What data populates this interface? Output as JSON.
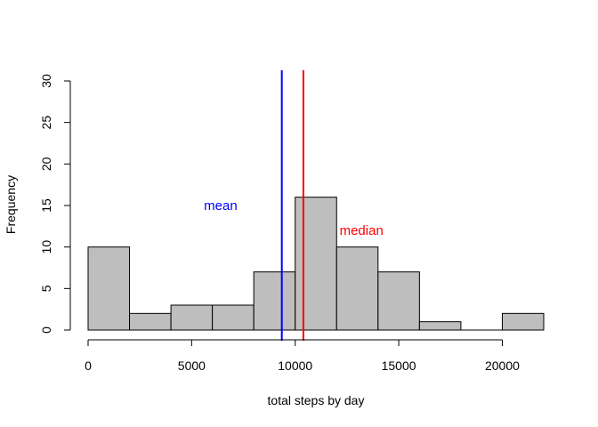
{
  "chart_data": {
    "type": "bar",
    "title": "",
    "xlabel": "total steps by day",
    "ylabel": "Frequency",
    "bins": [
      {
        "from": 0,
        "to": 2000,
        "count": 10
      },
      {
        "from": 2000,
        "to": 4000,
        "count": 2
      },
      {
        "from": 4000,
        "to": 6000,
        "count": 3
      },
      {
        "from": 6000,
        "to": 8000,
        "count": 3
      },
      {
        "from": 8000,
        "to": 10000,
        "count": 7
      },
      {
        "from": 10000,
        "to": 12000,
        "count": 16
      },
      {
        "from": 12000,
        "to": 14000,
        "count": 10
      },
      {
        "from": 14000,
        "to": 16000,
        "count": 7
      },
      {
        "from": 16000,
        "to": 18000,
        "count": 1
      },
      {
        "from": 18000,
        "to": 20000,
        "count": 0
      },
      {
        "from": 20000,
        "to": 22000,
        "count": 2
      }
    ],
    "xlim": [
      0,
      22000
    ],
    "ylim": [
      0,
      30
    ],
    "xticks": [
      0,
      5000,
      10000,
      15000,
      20000
    ],
    "xtick_labels": [
      "0",
      "5000",
      "10000",
      "15000",
      "20000"
    ],
    "yticks": [
      0,
      5,
      10,
      15,
      20,
      25,
      30
    ],
    "ytick_labels": [
      "0",
      "5",
      "10",
      "15",
      "20",
      "25",
      "30"
    ],
    "bar_fill": "#bebebe",
    "bar_stroke": "#000000",
    "grid": false,
    "reference_lines": [
      {
        "label": "mean",
        "x": 9354,
        "color": "#0000ff",
        "label_x": 6400,
        "label_y": 15
      },
      {
        "label": "median",
        "x": 10395,
        "color": "#ff0000",
        "label_x": 13200,
        "label_y": 12
      }
    ]
  }
}
